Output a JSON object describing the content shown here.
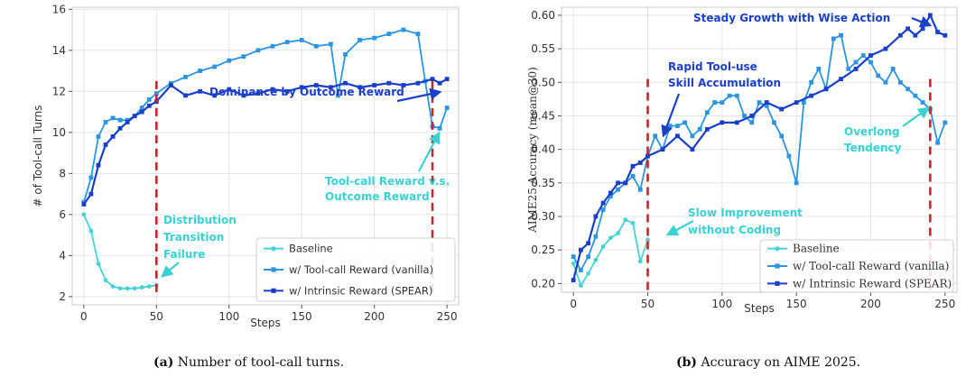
{
  "colors": {
    "baseline": "#46d3d6",
    "vanilla": "#2b95e0",
    "spear": "#1a3fc7",
    "vline": "#c0282a",
    "anno_dark": "#1c40c8",
    "anno_light": "#3ad1d3"
  },
  "captions": {
    "a": {
      "label": "(a)",
      "text": "Number of tool-call turns."
    },
    "b": {
      "label": "(b)",
      "text": "Accuracy on AIME 2025."
    }
  },
  "chart_data": [
    {
      "type": "line",
      "xlabel": "Steps",
      "ylabel": "# of Tool-call Turns",
      "xlim": [
        -8,
        258
      ],
      "ylim": [
        1.6,
        16.1
      ],
      "xticks": [
        0,
        50,
        100,
        150,
        200,
        250
      ],
      "yticks": [
        2,
        4,
        6,
        8,
        10,
        12,
        14,
        16
      ],
      "grid": true,
      "vlines": [
        50,
        240
      ],
      "legend_position": "bottom-right",
      "series": [
        {
          "name": "Baseline",
          "x": [
            0,
            5,
            10,
            15,
            20,
            25,
            30,
            35,
            40,
            45,
            50
          ],
          "y": [
            6.0,
            5.2,
            3.6,
            2.8,
            2.5,
            2.4,
            2.4,
            2.4,
            2.45,
            2.5,
            2.55
          ]
        },
        {
          "name": "w/ Tool-call Reward (vanilla)",
          "x": [
            0,
            5,
            10,
            15,
            20,
            25,
            30,
            35,
            40,
            45,
            50,
            60,
            70,
            80,
            90,
            100,
            110,
            120,
            130,
            140,
            150,
            160,
            170,
            175,
            180,
            190,
            200,
            210,
            220,
            230,
            235,
            240,
            245,
            250
          ],
          "y": [
            6.6,
            7.8,
            9.8,
            10.5,
            10.7,
            10.6,
            10.6,
            10.8,
            11.2,
            11.6,
            11.9,
            12.4,
            12.7,
            13.0,
            13.2,
            13.5,
            13.7,
            14.0,
            14.2,
            14.4,
            14.5,
            14.2,
            14.3,
            11.8,
            13.8,
            14.5,
            14.6,
            14.8,
            15.0,
            14.8,
            12.5,
            10.3,
            10.2,
            11.2
          ]
        },
        {
          "name": "w/ Intrinsic Reward (SPEAR)",
          "x": [
            0,
            5,
            10,
            15,
            20,
            25,
            30,
            35,
            40,
            45,
            50,
            60,
            70,
            80,
            90,
            100,
            110,
            120,
            130,
            140,
            150,
            160,
            170,
            180,
            190,
            200,
            210,
            220,
            230,
            240,
            245,
            250
          ],
          "y": [
            6.5,
            7.0,
            8.4,
            9.4,
            9.8,
            10.2,
            10.5,
            10.8,
            11.0,
            11.3,
            11.5,
            12.3,
            11.8,
            12.0,
            11.8,
            12.1,
            11.8,
            11.9,
            12.1,
            12.0,
            12.2,
            12.3,
            12.2,
            12.4,
            12.2,
            12.3,
            12.4,
            12.3,
            12.4,
            12.6,
            12.4,
            12.6
          ]
        }
      ],
      "annotations": [
        {
          "text": "Dominance by Outcome Reward",
          "color": "anno_dark"
        },
        {
          "text": "Tool-call Reward v.s.",
          "color": "anno_light"
        },
        {
          "text": "Outcome Reward",
          "color": "anno_light"
        },
        {
          "text": "Distribution",
          "color": "anno_light"
        },
        {
          "text": "Transition",
          "color": "anno_light"
        },
        {
          "text": "Failure",
          "color": "anno_light"
        }
      ]
    },
    {
      "type": "line",
      "xlabel": "Steps",
      "ylabel": "AIME25 Accuracy (mean@30)",
      "xlim": [
        -8,
        258
      ],
      "ylim": [
        0.187,
        0.612
      ],
      "xticks": [
        0,
        50,
        100,
        150,
        200,
        250
      ],
      "yticks": [
        0.2,
        0.25,
        0.3,
        0.35,
        0.4,
        0.45,
        0.5,
        0.55,
        0.6
      ],
      "ytick_labels": [
        "0.20",
        "0.25",
        "0.30",
        "0.35",
        "0.40",
        "0.45",
        "0.50",
        "0.55",
        "0.60"
      ],
      "grid": true,
      "vlines": [
        50,
        240
      ],
      "legend_position": "bottom-right",
      "series": [
        {
          "name": "Baseline",
          "x": [
            0,
            5,
            10,
            15,
            20,
            25,
            30,
            35,
            40,
            45,
            50
          ],
          "y": [
            0.23,
            0.197,
            0.215,
            0.235,
            0.255,
            0.268,
            0.275,
            0.295,
            0.29,
            0.233,
            0.265
          ]
        },
        {
          "name": "w/ Tool-call Reward (vanilla)",
          "x": [
            0,
            5,
            10,
            15,
            20,
            25,
            30,
            35,
            40,
            45,
            50,
            55,
            60,
            65,
            70,
            75,
            80,
            85,
            90,
            95,
            100,
            105,
            110,
            115,
            120,
            125,
            130,
            135,
            140,
            145,
            150,
            155,
            160,
            165,
            170,
            175,
            180,
            185,
            190,
            195,
            200,
            205,
            210,
            215,
            220,
            225,
            230,
            235,
            240,
            245,
            250
          ],
          "y": [
            0.24,
            0.22,
            0.24,
            0.27,
            0.31,
            0.33,
            0.34,
            0.35,
            0.36,
            0.34,
            0.39,
            0.42,
            0.4,
            0.435,
            0.435,
            0.44,
            0.42,
            0.43,
            0.455,
            0.47,
            0.47,
            0.48,
            0.48,
            0.45,
            0.44,
            0.47,
            0.465,
            0.44,
            0.42,
            0.39,
            0.35,
            0.47,
            0.5,
            0.52,
            0.49,
            0.565,
            0.57,
            0.52,
            0.53,
            0.54,
            0.53,
            0.51,
            0.5,
            0.52,
            0.5,
            0.49,
            0.48,
            0.47,
            0.46,
            0.41,
            0.44
          ]
        },
        {
          "name": "w/ Intrinsic Reward (SPEAR)",
          "x": [
            0,
            5,
            10,
            15,
            20,
            25,
            30,
            35,
            40,
            45,
            50,
            60,
            70,
            80,
            90,
            100,
            110,
            120,
            130,
            140,
            150,
            160,
            170,
            180,
            190,
            200,
            210,
            220,
            225,
            230,
            235,
            240,
            245,
            250
          ],
          "y": [
            0.205,
            0.25,
            0.26,
            0.3,
            0.32,
            0.335,
            0.35,
            0.35,
            0.375,
            0.38,
            0.39,
            0.4,
            0.42,
            0.4,
            0.43,
            0.44,
            0.44,
            0.45,
            0.47,
            0.46,
            0.47,
            0.48,
            0.49,
            0.505,
            0.52,
            0.54,
            0.55,
            0.57,
            0.58,
            0.57,
            0.58,
            0.6,
            0.575,
            0.57
          ]
        }
      ],
      "annotations": [
        {
          "text": "Steady Growth with Wise Action",
          "color": "anno_dark"
        },
        {
          "text": "Rapid Tool-use",
          "color": "anno_dark"
        },
        {
          "text": "Skill Accumulation",
          "color": "anno_dark"
        },
        {
          "text": "Overlong",
          "color": "anno_light"
        },
        {
          "text": "Tendency",
          "color": "anno_light"
        },
        {
          "text": "Slow Improvement",
          "color": "anno_light"
        },
        {
          "text": "without Coding",
          "color": "anno_light"
        }
      ]
    }
  ]
}
